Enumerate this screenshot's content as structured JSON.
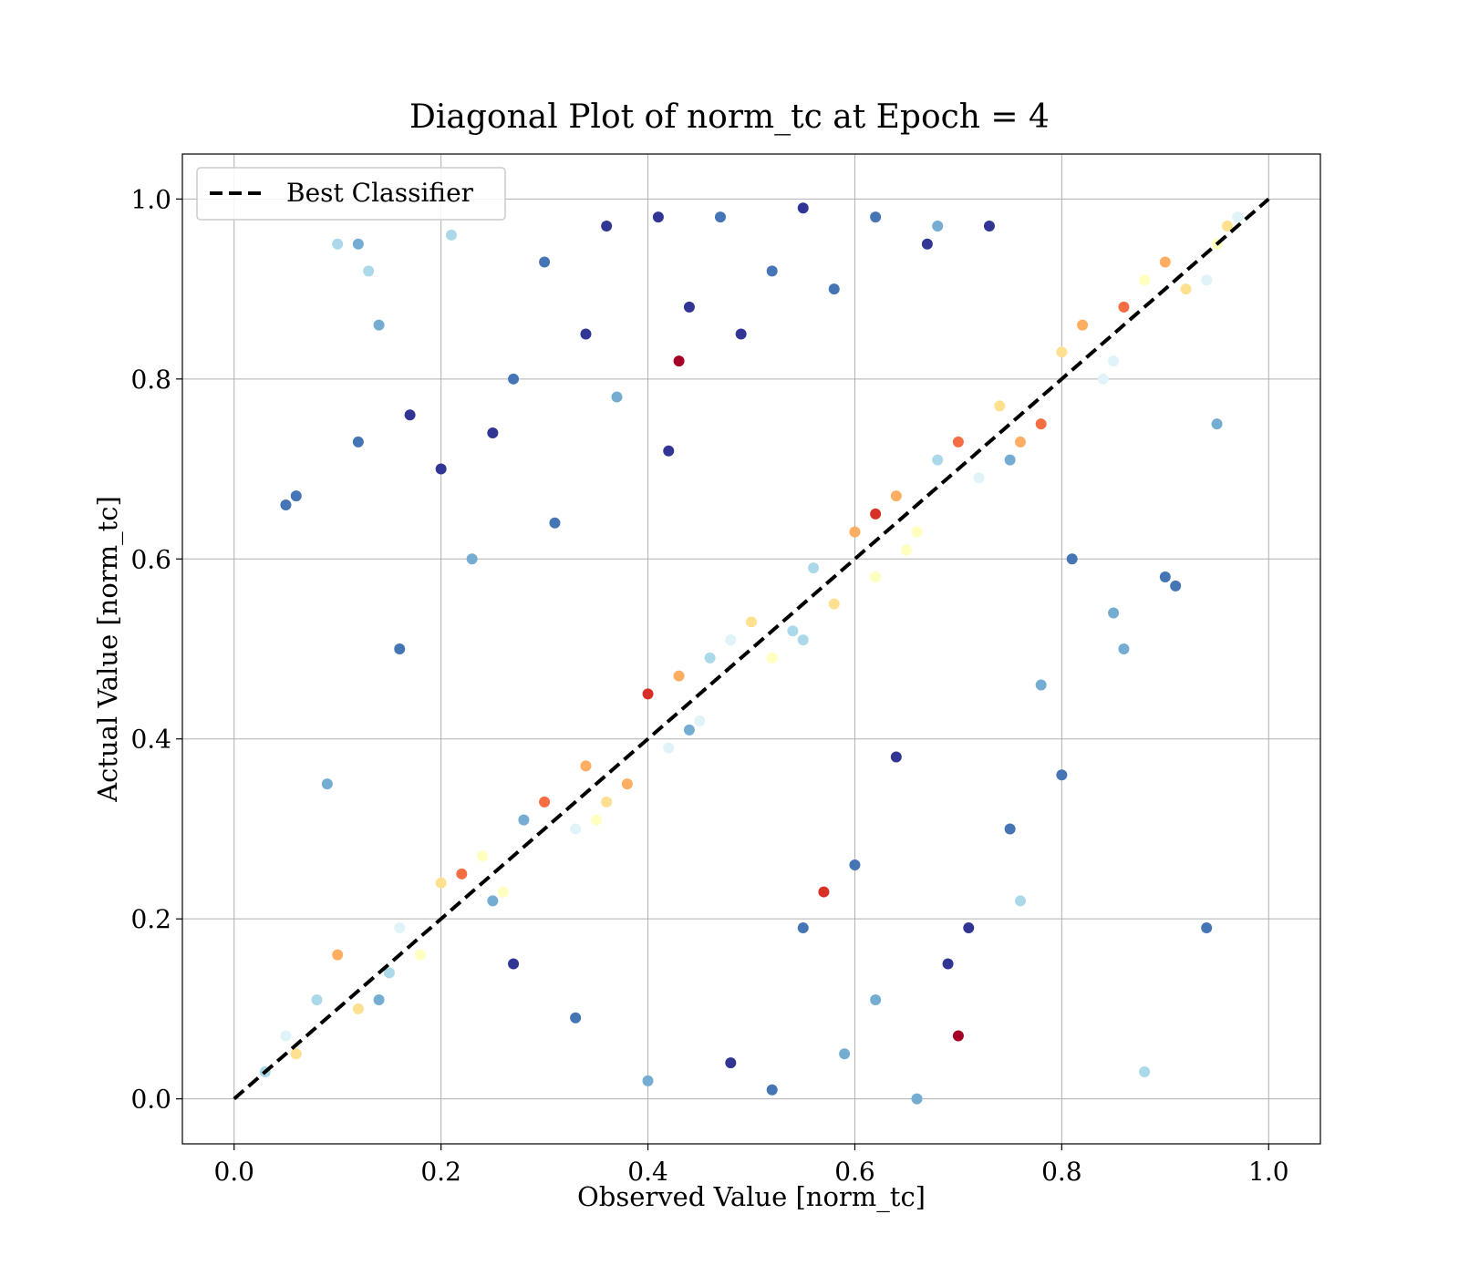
{
  "chart_data": {
    "type": "scatter",
    "title": "Diagonal Plot of norm_tc at Epoch = 4",
    "xlabel": "Observed Value [norm_tc]",
    "ylabel": "Actual Value [norm_tc]",
    "xlim": [
      -0.05,
      1.05
    ],
    "ylim": [
      -0.05,
      1.05
    ],
    "xticks": [
      "0.0",
      "0.2",
      "0.4",
      "0.6",
      "0.8",
      "1.0"
    ],
    "yticks": [
      "0.0",
      "0.2",
      "0.4",
      "0.6",
      "0.8",
      "1.0"
    ],
    "grid": true,
    "legend": {
      "placement": "top-left",
      "entries": [
        "Best Classifier"
      ]
    },
    "reference_line": {
      "name": "Best Classifier",
      "x": [
        0.0,
        1.0
      ],
      "y": [
        0.0,
        1.0
      ],
      "color": "#000000",
      "style": "dashed"
    },
    "colormap": "RdYlBu",
    "colors": [
      "#a50026",
      "#d73027",
      "#f46d43",
      "#fdae61",
      "#fee090",
      "#ffffbf",
      "#e0f3f8",
      "#abd9e9",
      "#74add1",
      "#4575b4",
      "#313695"
    ],
    "series": [
      {
        "kind": "scatter",
        "x": [
          0.05,
          0.1,
          0.15,
          0.2,
          0.25,
          0.3,
          0.35,
          0.4,
          0.45,
          0.5,
          0.55,
          0.6,
          0.65,
          0.7,
          0.75,
          0.8,
          0.85,
          0.9,
          0.95,
          0.03,
          0.12,
          0.22,
          0.33,
          0.43,
          0.52,
          0.62,
          0.72,
          0.82,
          0.92,
          0.08,
          0.18,
          0.28,
          0.38,
          0.48,
          0.58,
          0.68,
          0.78,
          0.88,
          0.97,
          0.14,
          0.34,
          0.54,
          0.74,
          0.94,
          0.24,
          0.44,
          0.64,
          0.84,
          0.06,
          0.46,
          0.66,
          0.86,
          0.16,
          0.36,
          0.56,
          0.76,
          0.26,
          0.96,
          0.42,
          0.62
        ],
        "y": [
          0.07,
          0.16,
          0.14,
          0.24,
          0.22,
          0.33,
          0.31,
          0.45,
          0.42,
          0.53,
          0.51,
          0.63,
          0.61,
          0.73,
          0.71,
          0.83,
          0.82,
          0.93,
          0.95,
          0.03,
          0.1,
          0.25,
          0.3,
          0.47,
          0.49,
          0.65,
          0.69,
          0.86,
          0.9,
          0.11,
          0.16,
          0.31,
          0.35,
          0.51,
          0.55,
          0.71,
          0.75,
          0.91,
          0.98,
          0.11,
          0.37,
          0.52,
          0.77,
          0.91,
          0.27,
          0.41,
          0.67,
          0.8,
          0.05,
          0.49,
          0.63,
          0.88,
          0.19,
          0.33,
          0.59,
          0.73,
          0.23,
          0.97,
          0.39,
          0.58
        ],
        "c": [
          0.6,
          0.3,
          0.7,
          0.4,
          0.8,
          0.2,
          0.5,
          0.1,
          0.6,
          0.4,
          0.7,
          0.3,
          0.5,
          0.2,
          0.8,
          0.4,
          0.6,
          0.3,
          0.5,
          0.7,
          0.4,
          0.2,
          0.6,
          0.3,
          0.5,
          0.1,
          0.6,
          0.3,
          0.4,
          0.7,
          0.5,
          0.8,
          0.3,
          0.6,
          0.4,
          0.7,
          0.2,
          0.5,
          0.6,
          0.8,
          0.3,
          0.7,
          0.4,
          0.6,
          0.5,
          0.8,
          0.3,
          0.6,
          0.4,
          0.7,
          0.5,
          0.2,
          0.6,
          0.4,
          0.7,
          0.3,
          0.5,
          0.4,
          0.6,
          0.5
        ]
      },
      {
        "kind": "outliers",
        "x": [
          0.1,
          0.13,
          0.12,
          0.05,
          0.06,
          0.09,
          0.14,
          0.21,
          0.3,
          0.36,
          0.41,
          0.47,
          0.55,
          0.62,
          0.68,
          0.73,
          0.81,
          0.86,
          0.94,
          0.88,
          0.95,
          0.91,
          0.76,
          0.7,
          0.66,
          0.59,
          0.52,
          0.57,
          0.44,
          0.34,
          0.27,
          0.2,
          0.23,
          0.16,
          0.42,
          0.49,
          0.58,
          0.64,
          0.75,
          0.8,
          0.69,
          0.62,
          0.55,
          0.48,
          0.4,
          0.33,
          0.27,
          0.37,
          0.43,
          0.6,
          0.71,
          0.78,
          0.85,
          0.9,
          0.25,
          0.31,
          0.17,
          0.12,
          0.67,
          0.52
        ],
        "y": [
          0.95,
          0.92,
          0.95,
          0.66,
          0.67,
          0.35,
          0.86,
          0.96,
          0.93,
          0.97,
          0.98,
          0.98,
          0.99,
          0.98,
          0.97,
          0.97,
          0.6,
          0.5,
          0.19,
          0.03,
          0.75,
          0.57,
          0.22,
          0.07,
          0.0,
          0.05,
          0.01,
          0.23,
          0.88,
          0.85,
          0.8,
          0.7,
          0.6,
          0.5,
          0.72,
          0.85,
          0.9,
          0.38,
          0.3,
          0.36,
          0.15,
          0.11,
          0.19,
          0.04,
          0.02,
          0.09,
          0.15,
          0.78,
          0.82,
          0.26,
          0.19,
          0.46,
          0.54,
          0.58,
          0.74,
          0.64,
          0.76,
          0.73,
          0.95,
          0.92
        ],
        "c": [
          0.7,
          0.7,
          0.8,
          0.9,
          0.9,
          0.8,
          0.8,
          0.7,
          0.9,
          1.0,
          1.0,
          0.9,
          1.0,
          0.9,
          0.8,
          1.0,
          0.9,
          0.8,
          0.9,
          0.7,
          0.8,
          0.9,
          0.7,
          0.0,
          0.8,
          0.8,
          0.9,
          0.1,
          1.0,
          1.0,
          0.9,
          1.0,
          0.8,
          0.9,
          1.0,
          1.0,
          0.9,
          1.0,
          0.9,
          0.9,
          1.0,
          0.8,
          0.9,
          1.0,
          0.8,
          0.9,
          1.0,
          0.8,
          0.0,
          0.9,
          1.0,
          0.8,
          0.8,
          0.9,
          1.0,
          0.9,
          1.0,
          0.9,
          1.0,
          0.9
        ]
      }
    ]
  }
}
